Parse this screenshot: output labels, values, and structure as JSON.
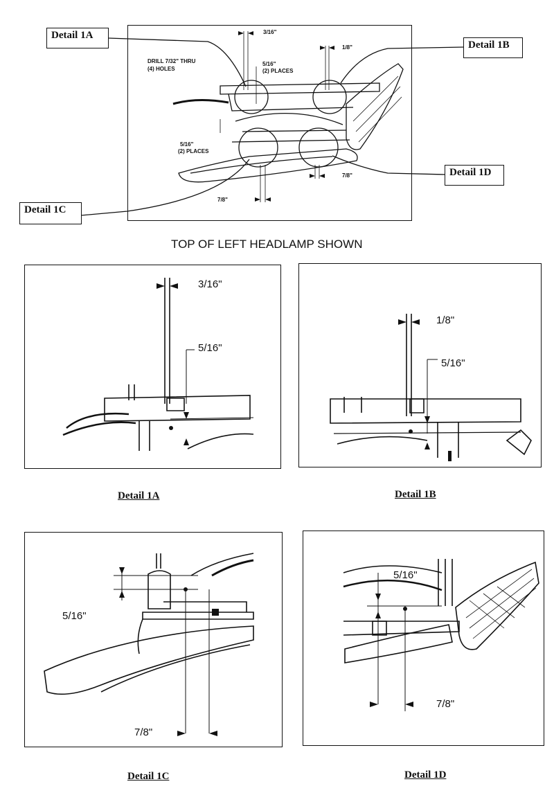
{
  "overview": {
    "callouts": {
      "d1a": "Detail 1A",
      "d1b": "Detail 1B",
      "d1c": "Detail 1C",
      "d1d": "Detail 1D"
    },
    "dims": {
      "top_a": "3/16\"",
      "top_b": "1/8\"",
      "drill_line1": "DRILL 7/32\"   THRU",
      "drill_line2": "(4) HOLES",
      "places_top_line1": "5/16\"",
      "places_top_line2": "(2) PLACES",
      "places_low_line1": "5/16\"",
      "places_low_line2": "(2) PLACES",
      "bottom_c": "7/8\"",
      "bottom_d": "7/8\""
    }
  },
  "title": "TOP OF LEFT HEADLAMP SHOWN",
  "details": {
    "d1a": {
      "dim1": "3/16\"",
      "dim2": "5/16\"",
      "caption": "Detail 1A"
    },
    "d1b": {
      "dim1": "1/8\"",
      "dim2": "5/16\"",
      "caption": "Detail 1B"
    },
    "d1c": {
      "dim1": "5/16\"",
      "dim2": "7/8\"",
      "caption": "Detail 1C"
    },
    "d1d": {
      "dim1": "5/16\"",
      "dim2": "7/8\"",
      "caption": "Detail 1D"
    }
  }
}
